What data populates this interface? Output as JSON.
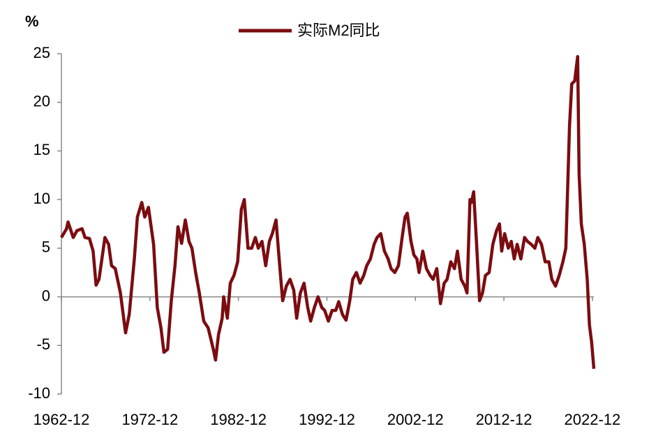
{
  "chart_data": {
    "type": "line",
    "y_unit": "%",
    "x": [
      "1962-12",
      "1963-07",
      "1963-09",
      "1964-04",
      "1964-09",
      "1965-04",
      "1965-08",
      "1966-02",
      "1966-07",
      "1966-11",
      "1967-03",
      "1967-11",
      "1968-04",
      "1968-08",
      "1969-01",
      "1969-08",
      "1970-03",
      "1970-08",
      "1971-03",
      "1971-07",
      "1972-01",
      "1972-05",
      "1972-10",
      "1973-05",
      "1973-10",
      "1974-03",
      "1974-07",
      "1974-12",
      "1975-05",
      "1975-10",
      "1976-02",
      "1976-07",
      "1976-12",
      "1977-05",
      "1977-09",
      "1978-02",
      "1978-07",
      "1979-01",
      "1979-07",
      "1980-02",
      "1980-05",
      "1980-09",
      "1981-02",
      "1981-04",
      "1981-09",
      "1982-01",
      "1982-06",
      "1982-11",
      "1983-04",
      "1983-08",
      "1984-01",
      "1984-06",
      "1984-11",
      "1985-03",
      "1985-08",
      "1986-01",
      "1986-06",
      "1986-10",
      "1987-03",
      "1987-08",
      "1987-12",
      "1988-05",
      "1988-10",
      "1989-03",
      "1989-07",
      "1989-12",
      "1990-05",
      "1990-10",
      "1991-02",
      "1991-07",
      "1991-12",
      "1992-05",
      "1992-09",
      "1993-02",
      "1993-07",
      "1993-12",
      "1994-04",
      "1994-09",
      "1995-02",
      "1995-07",
      "1995-11",
      "1996-04",
      "1996-09",
      "1997-02",
      "1997-06",
      "1997-11",
      "1998-04",
      "1998-08",
      "1999-01",
      "1999-06",
      "1999-11",
      "2000-03",
      "2000-08",
      "2001-01",
      "2001-06",
      "2001-10",
      "2002-01",
      "2002-06",
      "2002-10",
      "2003-02",
      "2003-05",
      "2003-10",
      "2004-03",
      "2004-08",
      "2004-12",
      "2005-05",
      "2005-10",
      "2006-03",
      "2006-07",
      "2006-12",
      "2007-05",
      "2007-09",
      "2008-02",
      "2008-07",
      "2008-10",
      "2009-02",
      "2009-04",
      "2009-07",
      "2009-11",
      "2010-03",
      "2010-07",
      "2010-11",
      "2011-04",
      "2011-09",
      "2012-02",
      "2012-06",
      "2012-09",
      "2013-01",
      "2013-06",
      "2013-10",
      "2014-02",
      "2014-06",
      "2014-11",
      "2015-04",
      "2015-08",
      "2016-01",
      "2016-06",
      "2016-10",
      "2017-03",
      "2017-08",
      "2018-01",
      "2018-05",
      "2018-10",
      "2019-03",
      "2019-08",
      "2019-12",
      "2020-05",
      "2020-08",
      "2020-12",
      "2021-04",
      "2021-06",
      "2021-09",
      "2022-01",
      "2022-05",
      "2022-08",
      "2022-11",
      "2023-02"
    ],
    "series": [
      {
        "name": "实际M2同比",
        "color": "#7b0c10",
        "values": [
          6.1,
          7.0,
          7.7,
          6.1,
          6.8,
          7.0,
          6.1,
          6.0,
          4.7,
          1.2,
          1.8,
          6.1,
          5.4,
          3.2,
          2.9,
          0.4,
          -3.7,
          -1.8,
          4.0,
          8.2,
          9.7,
          8.2,
          9.2,
          5.4,
          -1.1,
          -3.2,
          -5.7,
          -5.4,
          -0.4,
          3.2,
          7.2,
          5.5,
          7.9,
          5.7,
          5.0,
          2.5,
          0.4,
          -2.5,
          -3.2,
          -5.4,
          -6.5,
          -3.9,
          -2.2,
          0,
          -2.2,
          1.4,
          2.2,
          3.6,
          9.0,
          10.0,
          5.0,
          5.0,
          6.1,
          5.0,
          5.7,
          3.2,
          5.7,
          6.5,
          7.9,
          3.2,
          -0.4,
          1.1,
          1.8,
          0.7,
          -2.2,
          0.4,
          1.4,
          -1.1,
          -2.5,
          -1.1,
          0,
          -1.1,
          -1.4,
          -2.5,
          -1.4,
          -1.4,
          -0.5,
          -1.8,
          -2.4,
          -0.4,
          1.8,
          2.5,
          1.4,
          2.2,
          3.2,
          3.9,
          5.4,
          6.1,
          6.5,
          4.7,
          3.9,
          2.9,
          2.5,
          3.2,
          6.1,
          8.2,
          8.6,
          5.7,
          4.3,
          3.9,
          2.5,
          4.7,
          2.9,
          2.2,
          1.8,
          2.9,
          -0.7,
          1.4,
          1.8,
          3.6,
          2.9,
          4.7,
          1.8,
          1.1,
          0.4,
          10.0,
          9.7,
          10.8,
          5.4,
          -0.4,
          0.4,
          2.2,
          2.5,
          5.4,
          6.8,
          7.5,
          4.7,
          6.5,
          5.0,
          5.7,
          3.9,
          5.4,
          3.9,
          6.1,
          5.7,
          5.4,
          5.0,
          6.1,
          5.4,
          3.6,
          3.6,
          1.8,
          1.1,
          2.2,
          3.6,
          5.0,
          17.6,
          21.9,
          22.2,
          24.7,
          12.6,
          7.5,
          5.4,
          1.8,
          -2.9,
          -4.7,
          -7.4
        ]
      }
    ],
    "xlim": [
      "1962-12",
      "2023-02"
    ],
    "xticks": [
      "1962-12",
      "1972-12",
      "1982-12",
      "1992-12",
      "2002-12",
      "2012-12",
      "2022-12"
    ],
    "ylim": [
      -10,
      25
    ],
    "yticks": [
      -10,
      -5,
      0,
      5,
      10,
      15,
      20,
      25
    ],
    "grid": false,
    "legend": "top"
  }
}
